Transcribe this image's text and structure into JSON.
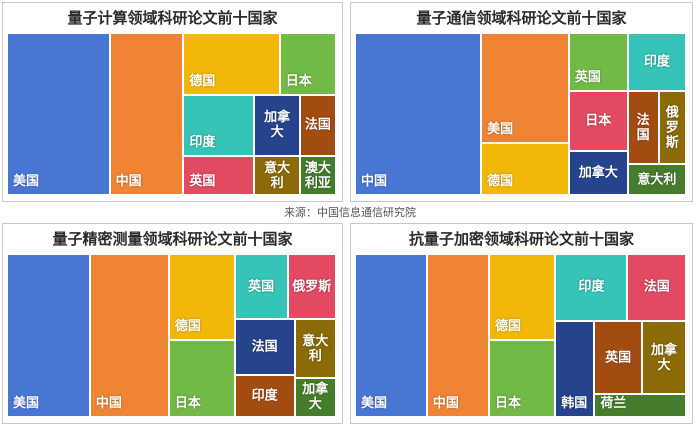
{
  "colors": {
    "blue": "#4877d3",
    "orange": "#ef8434",
    "yellow": "#f1b809",
    "green": "#72b946",
    "teal": "#36c3b8",
    "navy": "#26448c",
    "brown": "#a34c12",
    "red": "#e24a61",
    "olive": "#8b6a08",
    "dgreen": "#457d2c"
  },
  "source_text": "来源：中国信息通信研究院",
  "chart_data": [
    {
      "type": "treemap",
      "title": "量子计算领域科研论文前十国家",
      "items": [
        {
          "label": "美国",
          "rank": 1,
          "color": "blue"
        },
        {
          "label": "中国",
          "rank": 2,
          "color": "orange"
        },
        {
          "label": "德国",
          "rank": 3,
          "color": "yellow"
        },
        {
          "label": "日本",
          "rank": 4,
          "color": "green"
        },
        {
          "label": "印度",
          "rank": 5,
          "color": "teal"
        },
        {
          "label": "英国",
          "rank": 6,
          "color": "red"
        },
        {
          "label": "加拿大",
          "rank": 7,
          "color": "navy"
        },
        {
          "label": "法国",
          "rank": 8,
          "color": "brown"
        },
        {
          "label": "意大利",
          "rank": 9,
          "color": "olive"
        },
        {
          "label": "澳大利亚",
          "rank": 10,
          "color": "dgreen"
        }
      ]
    },
    {
      "type": "treemap",
      "title": "量子通信领域科研论文前十国家",
      "items": [
        {
          "label": "中国",
          "rank": 1,
          "color": "blue"
        },
        {
          "label": "美国",
          "rank": 2,
          "color": "orange"
        },
        {
          "label": "德国",
          "rank": 3,
          "color": "yellow"
        },
        {
          "label": "英国",
          "rank": 4,
          "color": "green"
        },
        {
          "label": "印度",
          "rank": 5,
          "color": "teal"
        },
        {
          "label": "日本",
          "rank": 6,
          "color": "red"
        },
        {
          "label": "加拿大",
          "rank": 7,
          "color": "navy"
        },
        {
          "label": "法国",
          "rank": 8,
          "color": "brown"
        },
        {
          "label": "俄罗斯",
          "rank": 9,
          "color": "olive"
        },
        {
          "label": "意大利",
          "rank": 10,
          "color": "dgreen"
        }
      ]
    },
    {
      "type": "treemap",
      "title": "量子精密测量领域科研论文前十国家",
      "items": [
        {
          "label": "美国",
          "rank": 1,
          "color": "blue"
        },
        {
          "label": "中国",
          "rank": 2,
          "color": "orange"
        },
        {
          "label": "德国",
          "rank": 3,
          "color": "yellow"
        },
        {
          "label": "日本",
          "rank": 4,
          "color": "green"
        },
        {
          "label": "英国",
          "rank": 5,
          "color": "teal"
        },
        {
          "label": "俄罗斯",
          "rank": 6,
          "color": "red"
        },
        {
          "label": "法国",
          "rank": 7,
          "color": "navy"
        },
        {
          "label": "意大利",
          "rank": 8,
          "color": "olive"
        },
        {
          "label": "印度",
          "rank": 9,
          "color": "brown"
        },
        {
          "label": "加拿大",
          "rank": 10,
          "color": "dgreen"
        }
      ]
    },
    {
      "type": "treemap",
      "title": "抗量子加密领域科研论文前十国家",
      "items": [
        {
          "label": "美国",
          "rank": 1,
          "color": "blue"
        },
        {
          "label": "中国",
          "rank": 2,
          "color": "orange"
        },
        {
          "label": "德国",
          "rank": 3,
          "color": "yellow"
        },
        {
          "label": "日本",
          "rank": 4,
          "color": "green"
        },
        {
          "label": "印度",
          "rank": 5,
          "color": "teal"
        },
        {
          "label": "法国",
          "rank": 6,
          "color": "red"
        },
        {
          "label": "韩国",
          "rank": 7,
          "color": "navy"
        },
        {
          "label": "英国",
          "rank": 8,
          "color": "brown"
        },
        {
          "label": "加拿大",
          "rank": 9,
          "color": "olive"
        },
        {
          "label": "荷兰",
          "rank": 10,
          "color": "dgreen"
        }
      ]
    }
  ]
}
